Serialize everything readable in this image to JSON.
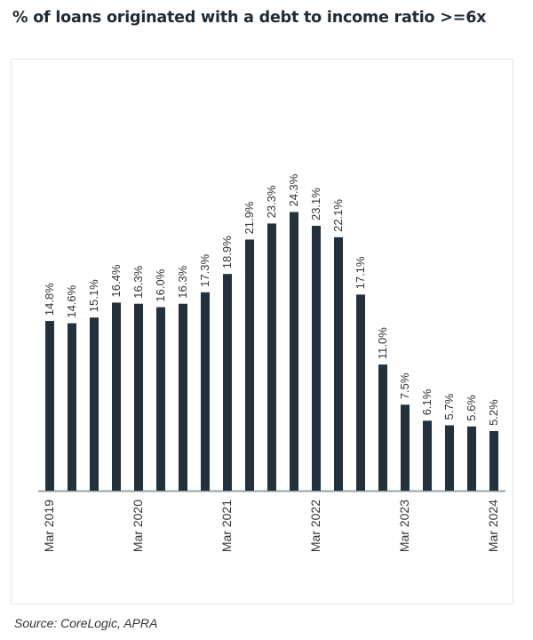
{
  "title": "% of loans originated  with a debt to income  ratio >=6x",
  "source": "Source:  CoreLogic, APRA",
  "colors": {
    "bar": "#23313c",
    "axis": "#9aa0a6",
    "text": "#333333"
  },
  "chart_data": {
    "type": "bar",
    "title": "% of loans originated  with a debt to income  ratio >=6x",
    "categories": [
      "Mar 2019",
      "",
      "",
      "",
      "Mar 2020",
      "",
      "",
      "",
      "Mar 2021",
      "",
      "",
      "",
      "Mar 2022",
      "",
      "",
      "",
      "Mar 2023",
      "",
      "",
      "",
      "Mar 2024"
    ],
    "values": [
      14.8,
      14.6,
      15.1,
      16.4,
      16.3,
      16.0,
      16.3,
      17.3,
      18.9,
      21.9,
      23.3,
      24.3,
      23.1,
      22.1,
      17.1,
      11.0,
      7.5,
      6.1,
      5.7,
      5.6,
      5.2
    ],
    "data_labels": [
      "14.8%",
      "14.6%",
      "15.1%",
      "16.4%",
      "16.3%",
      "16.0%",
      "16.3%",
      "17.3%",
      "18.9%",
      "21.9%",
      "23.3%",
      "24.3%",
      "23.1%",
      "22.1%",
      "17.1%",
      "11.0%",
      "7.5%",
      "6.1%",
      "5.7%",
      "5.6%",
      "5.2%"
    ],
    "xlabel": "",
    "ylabel": "",
    "ylim": [
      0,
      25
    ],
    "grid": false,
    "legend": "none"
  }
}
